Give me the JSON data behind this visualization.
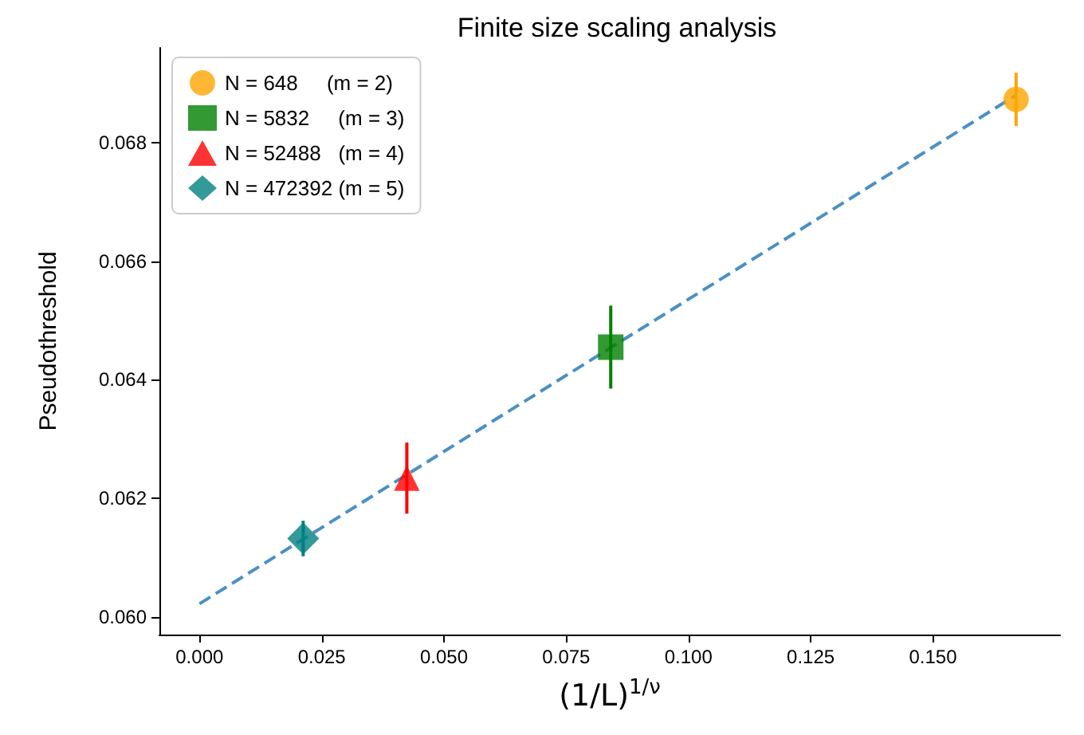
{
  "chart_data": {
    "type": "scatter",
    "title": "Finite size scaling analysis",
    "xlabel": "(1/L)$^{1/ν}$",
    "ylabel": "Pseudothreshold",
    "xlim": [
      -0.0082,
      0.176
    ],
    "ylim": [
      0.0597,
      0.0696
    ],
    "xticks": [
      {
        "value": 0,
        "label": "0.000"
      },
      {
        "value": 0.025,
        "label": "0.025"
      },
      {
        "value": 0.05,
        "label": "0.050"
      },
      {
        "value": 0.075,
        "label": "0.075"
      },
      {
        "value": 0.1,
        "label": "0.100"
      },
      {
        "value": 0.125,
        "label": "0.125"
      },
      {
        "value": 0.15,
        "label": "0.150"
      }
    ],
    "yticks": [
      {
        "value": 0.06,
        "label": "0.060"
      },
      {
        "value": 0.062,
        "label": "0.062"
      },
      {
        "value": 0.064,
        "label": "0.064"
      },
      {
        "value": 0.066,
        "label": "0.066"
      },
      {
        "value": 0.068,
        "label": "0.068"
      }
    ],
    "grid": false,
    "legend": "top left",
    "series": [
      {
        "name": "N = 648     (m = 2)",
        "color": "#ffa500",
        "marker": "circle",
        "x": [
          0.167
        ],
        "values": [
          0.06873
        ],
        "errors": [
          0.00045
        ]
      },
      {
        "name": "N = 5832     (m = 3)",
        "color": "#008000",
        "marker": "square",
        "x": [
          0.0841
        ],
        "values": [
          0.06455
        ],
        "errors": [
          0.0007
        ]
      },
      {
        "name": "N = 52488   (m = 4)",
        "color": "#ff0000",
        "marker": "triangle",
        "x": [
          0.0424
        ],
        "values": [
          0.06234
        ],
        "errors": [
          0.0006
        ]
      },
      {
        "name": "N = 472392 (m = 5)",
        "color": "#008080",
        "marker": "diamond",
        "x": [
          0.0212
        ],
        "values": [
          0.06132
        ],
        "errors": [
          0.0003
        ]
      },
      {
        "type": "line",
        "color": "#4a90c4",
        "line_style": "dashed",
        "marker": "none",
        "x": [
          0,
          0.167
        ],
        "values": [
          0.06022,
          0.0688
        ]
      }
    ]
  }
}
